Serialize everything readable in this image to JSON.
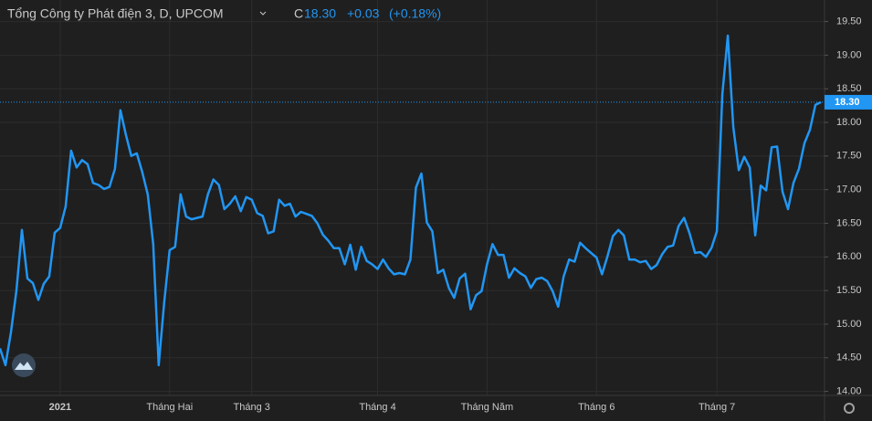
{
  "header": {
    "title": "Tổng Công ty Phát điện 3, D, UPCOM",
    "close_prefix": "C",
    "close": "18.30",
    "change": "+0.03",
    "change_pct": "(+0.18%)"
  },
  "chart_data": {
    "type": "line",
    "color": "#2196f3",
    "grid": true,
    "values": [
      14.64,
      14.39,
      14.88,
      15.5,
      16.4,
      15.68,
      15.61,
      15.36,
      15.6,
      15.71,
      16.36,
      16.43,
      16.75,
      17.58,
      17.33,
      17.44,
      17.38,
      17.1,
      17.07,
      17.01,
      17.04,
      17.31,
      18.18,
      17.82,
      17.5,
      17.54,
      17.26,
      16.93,
      16.19,
      14.39,
      15.32,
      16.1,
      16.15,
      16.93,
      16.6,
      16.56,
      16.58,
      16.6,
      16.93,
      17.15,
      17.07,
      16.71,
      16.79,
      16.9,
      16.68,
      16.89,
      16.85,
      16.65,
      16.61,
      16.35,
      16.38,
      16.85,
      16.76,
      16.79,
      16.6,
      16.67,
      16.64,
      16.61,
      16.5,
      16.33,
      16.24,
      16.13,
      16.13,
      15.89,
      16.18,
      15.81,
      16.15,
      15.94,
      15.89,
      15.82,
      15.96,
      15.83,
      15.74,
      15.76,
      15.74,
      15.96,
      17.03,
      17.24,
      16.51,
      16.38,
      15.76,
      15.81,
      15.54,
      15.39,
      15.68,
      15.75,
      15.22,
      15.43,
      15.49,
      15.89,
      16.19,
      16.03,
      16.03,
      15.69,
      15.83,
      15.76,
      15.71,
      15.54,
      15.67,
      15.69,
      15.64,
      15.49,
      15.26,
      15.71,
      15.96,
      15.93,
      16.21,
      16.13,
      16.06,
      15.99,
      15.74,
      16.01,
      16.31,
      16.4,
      16.32,
      15.96,
      15.96,
      15.92,
      15.94,
      15.82,
      15.88,
      16.04,
      16.15,
      16.17,
      16.46,
      16.58,
      16.35,
      16.06,
      16.07,
      16.0,
      16.13,
      16.38,
      18.42,
      19.29,
      17.93,
      17.29,
      17.49,
      17.33,
      16.32,
      17.06,
      16.99,
      17.63,
      17.64,
      16.97,
      16.71,
      17.1,
      17.31,
      17.69,
      17.89,
      18.26,
      18.3
    ],
    "ylim": [
      13.94,
      19.82
    ],
    "yticks": [
      {
        "value": 14,
        "label": "14.00"
      },
      {
        "value": 14.5,
        "label": "14.50"
      },
      {
        "value": 15,
        "label": "15.00"
      },
      {
        "value": 15.5,
        "label": "15.50"
      },
      {
        "value": 16,
        "label": "16.00"
      },
      {
        "value": 16.5,
        "label": "16.50"
      },
      {
        "value": 17,
        "label": "17.00"
      },
      {
        "value": 17.5,
        "label": "17.50"
      },
      {
        "value": 18,
        "label": "18.00"
      },
      {
        "value": 18.5,
        "label": "18.50"
      },
      {
        "value": 19,
        "label": "19.00"
      },
      {
        "value": 19.5,
        "label": "19.50"
      }
    ],
    "xticks": [
      {
        "value": 11,
        "label": "2021"
      },
      {
        "value": 31,
        "label": "Tháng Hai"
      },
      {
        "value": 46,
        "label": "Tháng 3"
      },
      {
        "value": 69,
        "label": "Tháng 4"
      },
      {
        "value": 89,
        "label": "Tháng Năm"
      },
      {
        "value": 109,
        "label": "Tháng 6"
      },
      {
        "value": 131,
        "label": "Tháng 7"
      }
    ]
  }
}
